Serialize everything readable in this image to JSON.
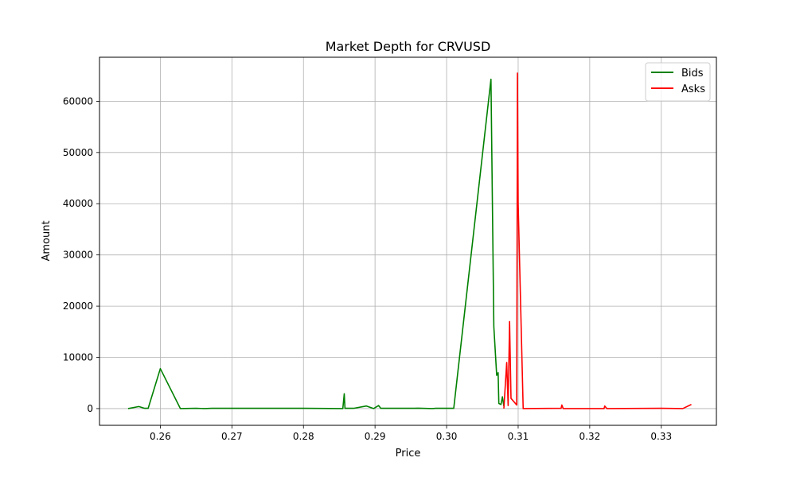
{
  "chart_data": {
    "type": "line",
    "title": "Market Depth for CRVUSD",
    "xlabel": "Price",
    "ylabel": "Amount",
    "xlim": [
      0.2515,
      0.3377
    ],
    "ylim": [
      -3270,
      68600
    ],
    "xticks": [
      0.26,
      0.27,
      0.28,
      0.29,
      0.3,
      0.31,
      0.32,
      0.33
    ],
    "yticks": [
      0,
      10000,
      20000,
      30000,
      40000,
      50000,
      60000
    ],
    "xtick_labels": [
      "0.26",
      "0.27",
      "0.28",
      "0.29",
      "0.30",
      "0.31",
      "0.32",
      "0.33"
    ],
    "ytick_labels": [
      "0",
      "10000",
      "20000",
      "30000",
      "40000",
      "50000",
      "60000"
    ],
    "grid": true,
    "legend_position": "top-right",
    "series": [
      {
        "name": "Bids",
        "color": "#008000",
        "points": [
          [
            0.2555,
            0
          ],
          [
            0.257,
            400
          ],
          [
            0.2578,
            50
          ],
          [
            0.2583,
            50
          ],
          [
            0.26,
            7800
          ],
          [
            0.2628,
            0
          ],
          [
            0.265,
            50
          ],
          [
            0.2662,
            0
          ],
          [
            0.2672,
            50
          ],
          [
            0.28,
            50
          ],
          [
            0.2855,
            0
          ],
          [
            0.2857,
            2900
          ],
          [
            0.2858,
            50
          ],
          [
            0.287,
            50
          ],
          [
            0.2888,
            500
          ],
          [
            0.2898,
            0
          ],
          [
            0.2905,
            600
          ],
          [
            0.2908,
            50
          ],
          [
            0.2955,
            50
          ],
          [
            0.296,
            80
          ],
          [
            0.298,
            0
          ],
          [
            0.2985,
            50
          ],
          [
            0.301,
            50
          ],
          [
            0.3062,
            64300
          ],
          [
            0.3066,
            16000
          ],
          [
            0.307,
            6500
          ],
          [
            0.3072,
            7000
          ],
          [
            0.3073,
            1000
          ],
          [
            0.3076,
            800
          ],
          [
            0.3078,
            2300
          ],
          [
            0.308,
            500
          ]
        ]
      },
      {
        "name": "Asks",
        "color": "#ff0000",
        "points": [
          [
            0.308,
            0
          ],
          [
            0.3084,
            9000
          ],
          [
            0.3086,
            600
          ],
          [
            0.3088,
            17000
          ],
          [
            0.309,
            2000
          ],
          [
            0.3098,
            700
          ],
          [
            0.3099,
            65500
          ],
          [
            0.31,
            40000
          ],
          [
            0.3107,
            0
          ],
          [
            0.316,
            50
          ],
          [
            0.3161,
            700
          ],
          [
            0.3163,
            0
          ],
          [
            0.322,
            0
          ],
          [
            0.3221,
            500
          ],
          [
            0.3224,
            0
          ],
          [
            0.33,
            50
          ],
          [
            0.333,
            0
          ],
          [
            0.3342,
            800
          ]
        ]
      }
    ]
  }
}
